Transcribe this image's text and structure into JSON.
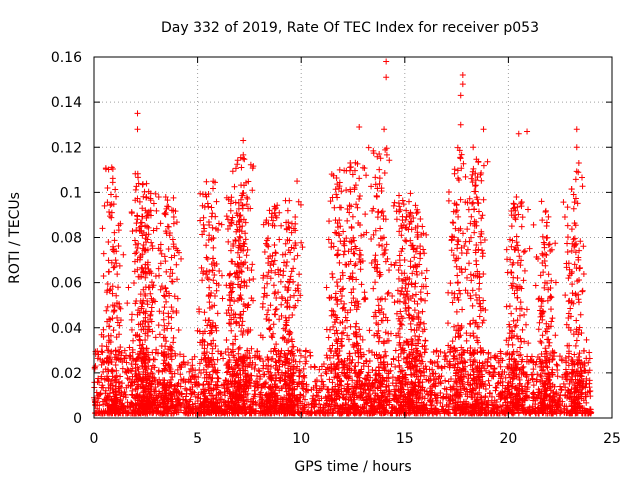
{
  "chart_data": {
    "type": "scatter",
    "title": "Day 332 of 2019, Rate Of TEC Index for receiver p053",
    "xlabel": "GPS time / hours",
    "ylabel": "ROTI / TECUs",
    "xlim": [
      0,
      25
    ],
    "ylim": [
      0,
      0.16
    ],
    "xticks": [
      0,
      5,
      10,
      15,
      20,
      25
    ],
    "yticks": [
      0,
      0.02,
      0.04,
      0.06,
      0.08,
      0.1,
      0.12,
      0.14,
      0.16
    ],
    "xtick_labels": [
      "0",
      "5",
      "10",
      "15",
      "20",
      "25"
    ],
    "ytick_labels": [
      "0",
      "0.02",
      "0.04",
      "0.06",
      "0.08",
      "0.1",
      "0.12",
      "0.14",
      "0.16"
    ],
    "grid": true,
    "marker": "+",
    "marker_color": "#ff0000",
    "data_span_hours": [
      0,
      24
    ],
    "notable_points": [
      {
        "x": 2.1,
        "y": 0.135
      },
      {
        "x": 2.1,
        "y": 0.128
      },
      {
        "x": 7.2,
        "y": 0.123
      },
      {
        "x": 7.2,
        "y": 0.115
      },
      {
        "x": 9.8,
        "y": 0.105
      },
      {
        "x": 12.8,
        "y": 0.129
      },
      {
        "x": 14.1,
        "y": 0.158
      },
      {
        "x": 14.1,
        "y": 0.151
      },
      {
        "x": 14.0,
        "y": 0.128
      },
      {
        "x": 17.8,
        "y": 0.152
      },
      {
        "x": 17.8,
        "y": 0.148
      },
      {
        "x": 17.7,
        "y": 0.143
      },
      {
        "x": 17.7,
        "y": 0.13
      },
      {
        "x": 18.3,
        "y": 0.12
      },
      {
        "x": 18.8,
        "y": 0.128
      },
      {
        "x": 20.5,
        "y": 0.126
      },
      {
        "x": 20.9,
        "y": 0.127
      },
      {
        "x": 21.6,
        "y": 0.096
      },
      {
        "x": 23.3,
        "y": 0.128
      },
      {
        "x": 23.3,
        "y": 0.12
      },
      {
        "x": 23.4,
        "y": 0.113
      }
    ],
    "activity_peaks": [
      {
        "center": 0.9,
        "peak": 0.112
      },
      {
        "center": 2.2,
        "peak": 0.109
      },
      {
        "center": 2.6,
        "peak": 0.104
      },
      {
        "center": 3.6,
        "peak": 0.098
      },
      {
        "center": 5.6,
        "peak": 0.105
      },
      {
        "center": 6.8,
        "peak": 0.098
      },
      {
        "center": 7.2,
        "peak": 0.117
      },
      {
        "center": 8.6,
        "peak": 0.095
      },
      {
        "center": 9.5,
        "peak": 0.098
      },
      {
        "center": 11.8,
        "peak": 0.11
      },
      {
        "center": 12.6,
        "peak": 0.115
      },
      {
        "center": 13.8,
        "peak": 0.12
      },
      {
        "center": 15.0,
        "peak": 0.1
      },
      {
        "center": 15.6,
        "peak": 0.093
      },
      {
        "center": 17.6,
        "peak": 0.12
      },
      {
        "center": 18.5,
        "peak": 0.115
      },
      {
        "center": 20.4,
        "peak": 0.1
      },
      {
        "center": 21.8,
        "peak": 0.095
      },
      {
        "center": 23.2,
        "peak": 0.11
      }
    ]
  }
}
